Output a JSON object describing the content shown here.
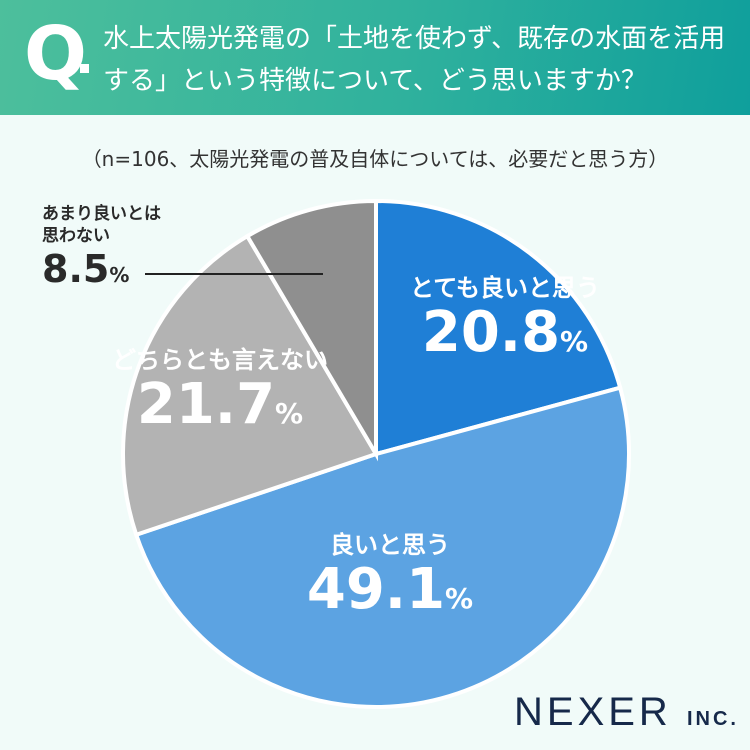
{
  "header": {
    "q": "Q",
    "question": "水上太陽光発電の「土地を使わず、既存の水面を活用する」という特徴について、どう思いますか？"
  },
  "subtitle": "（n=106、太陽光発電の普及自体については、必要だと思う方）",
  "chart_data": {
    "type": "pie",
    "categories": [
      "とても良いと思う",
      "良いと思う",
      "どちらとも言えない",
      "あまり良いとは思わない"
    ],
    "values": [
      20.8,
      49.1,
      21.7,
      8.5
    ],
    "colors": [
      "#1f7fd6",
      "#5ca3e2",
      "#b3b3b3",
      "#8f8f8f"
    ],
    "unit": "%",
    "start": "12 o'clock, clockwise"
  },
  "labels": [
    {
      "cat": "とても良いと思う",
      "num": "20.8",
      "unit": "%"
    },
    {
      "cat": "良いと思う",
      "num": "49.1",
      "unit": "%"
    },
    {
      "cat": "どちらとも言えない",
      "num": "21.7",
      "unit": "%"
    },
    {
      "cat": "あまり良いとは思わない",
      "num": "8.5",
      "unit": "%"
    }
  ],
  "logo": {
    "main": "NEXER",
    "suffix": "INC."
  }
}
